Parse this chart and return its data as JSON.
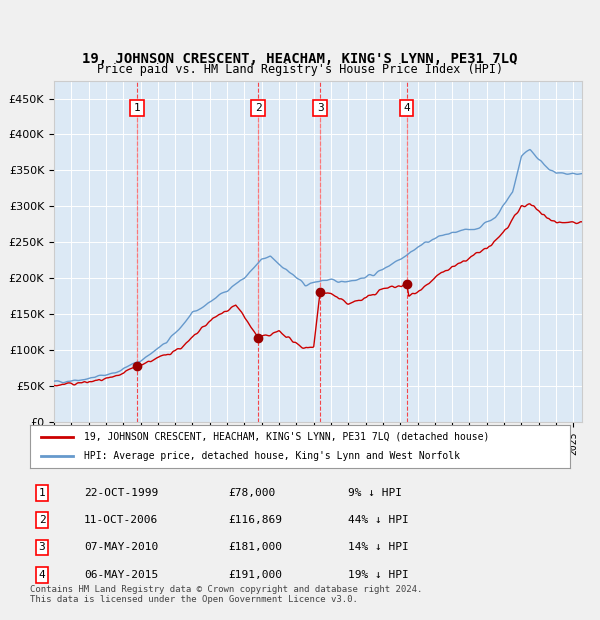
{
  "title": "19, JOHNSON CRESCENT, HEACHAM, KING'S LYNN, PE31 7LQ",
  "subtitle": "Price paid vs. HM Land Registry's House Price Index (HPI)",
  "ylabel": "",
  "background_color": "#dce9f5",
  "plot_bg_color": "#dce9f5",
  "grid_color": "#ffffff",
  "ylim": [
    0,
    475000
  ],
  "yticks": [
    0,
    50000,
    100000,
    150000,
    200000,
    250000,
    300000,
    350000,
    400000,
    450000
  ],
  "ytick_labels": [
    "£0",
    "£50K",
    "£100K",
    "£150K",
    "£200K",
    "£250K",
    "£300K",
    "£350K",
    "£400K",
    "£450K"
  ],
  "sale_dates": [
    "1999-10-22",
    "2006-10-11",
    "2010-05-07",
    "2015-05-06"
  ],
  "sale_prices": [
    78000,
    116869,
    181000,
    191000
  ],
  "sale_labels": [
    "1",
    "2",
    "3",
    "4"
  ],
  "sale_hpi_pct": [
    "9% ↓ HPI",
    "44% ↓ HPI",
    "14% ↓ HPI",
    "19% ↓ HPI"
  ],
  "sale_date_strs": [
    "22-OCT-1999",
    "11-OCT-2006",
    "07-MAY-2010",
    "06-MAY-2015"
  ],
  "sale_price_strs": [
    "£78,000",
    "£116,869",
    "£181,000",
    "£191,000"
  ],
  "line_color_red": "#cc0000",
  "line_color_blue": "#6699cc",
  "marker_color": "#990000",
  "dashed_line_color": "#cc0000",
  "legend_label_red": "19, JOHNSON CRESCENT, HEACHAM, KING'S LYNN, PE31 7LQ (detached house)",
  "legend_label_blue": "HPI: Average price, detached house, King's Lynn and West Norfolk",
  "footnote": "Contains HM Land Registry data © Crown copyright and database right 2024.\nThis data is licensed under the Open Government Licence v3.0.",
  "xstart": 1995.0,
  "xend": 2025.5
}
